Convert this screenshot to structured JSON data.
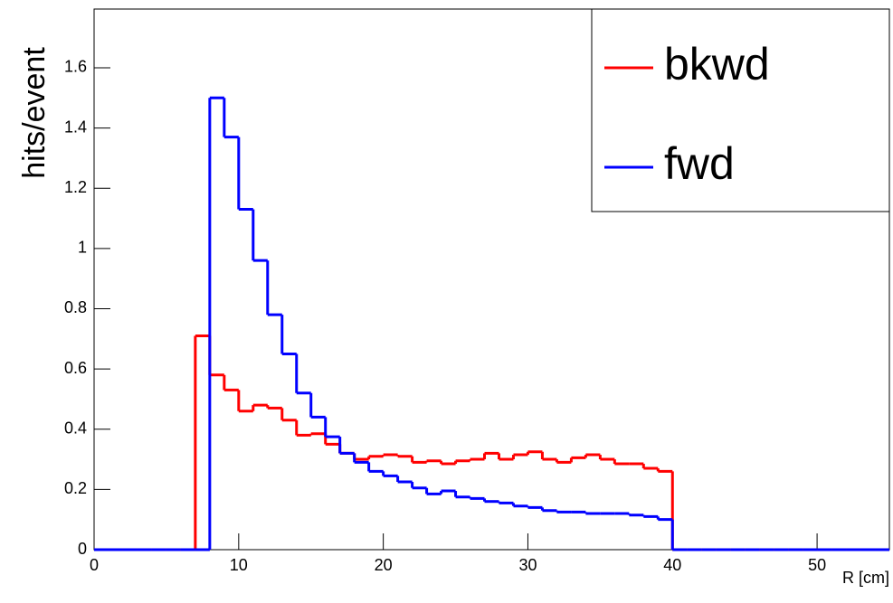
{
  "chart_data": {
    "type": "histogram",
    "x_label": "R [cm]",
    "y_label": "hits/event",
    "bins": [
      0,
      1,
      2,
      3,
      4,
      5,
      6,
      7,
      8,
      9,
      10,
      11,
      12,
      13,
      14,
      15,
      16,
      17,
      18,
      19,
      20,
      21,
      22,
      23,
      24,
      25,
      26,
      27,
      28,
      29,
      30,
      31,
      32,
      33,
      34,
      35,
      36,
      37,
      38,
      39,
      40,
      41,
      42,
      43,
      44,
      45,
      46,
      47,
      48,
      49,
      50,
      51,
      52,
      53,
      54,
      55
    ],
    "series": [
      {
        "name": "bkwd",
        "color": "#ff0000",
        "values": [
          0,
          0,
          0,
          0,
          0,
          0,
          0,
          0.71,
          0.58,
          0.53,
          0.46,
          0.48,
          0.47,
          0.43,
          0.38,
          0.385,
          0.35,
          0.32,
          0.3,
          0.31,
          0.315,
          0.31,
          0.29,
          0.295,
          0.285,
          0.295,
          0.3,
          0.32,
          0.3,
          0.315,
          0.325,
          0.3,
          0.29,
          0.305,
          0.315,
          0.3,
          0.285,
          0.285,
          0.27,
          0.26,
          0,
          0,
          0,
          0,
          0,
          0,
          0,
          0,
          0,
          0,
          0,
          0,
          0,
          0,
          0
        ]
      },
      {
        "name": "fwd",
        "color": "#0000ff",
        "values": [
          0,
          0,
          0,
          0,
          0,
          0,
          0,
          0,
          1.5,
          1.37,
          1.13,
          0.96,
          0.78,
          0.65,
          0.52,
          0.44,
          0.375,
          0.32,
          0.29,
          0.26,
          0.245,
          0.225,
          0.205,
          0.185,
          0.195,
          0.175,
          0.17,
          0.16,
          0.155,
          0.145,
          0.14,
          0.13,
          0.125,
          0.125,
          0.12,
          0.12,
          0.12,
          0.115,
          0.11,
          0.1,
          0,
          0,
          0,
          0,
          0,
          0,
          0,
          0,
          0,
          0,
          0,
          0,
          0,
          0,
          0
        ]
      }
    ],
    "xlim": [
      0,
      55
    ],
    "xticks": [
      0,
      10,
      20,
      30,
      40,
      50
    ],
    "ylim": [
      0,
      1.795
    ],
    "yticks": [
      0,
      0.2,
      0.4,
      0.6,
      0.8,
      1,
      1.2,
      1.4,
      1.6
    ],
    "grid": false,
    "legend": "top-right"
  }
}
